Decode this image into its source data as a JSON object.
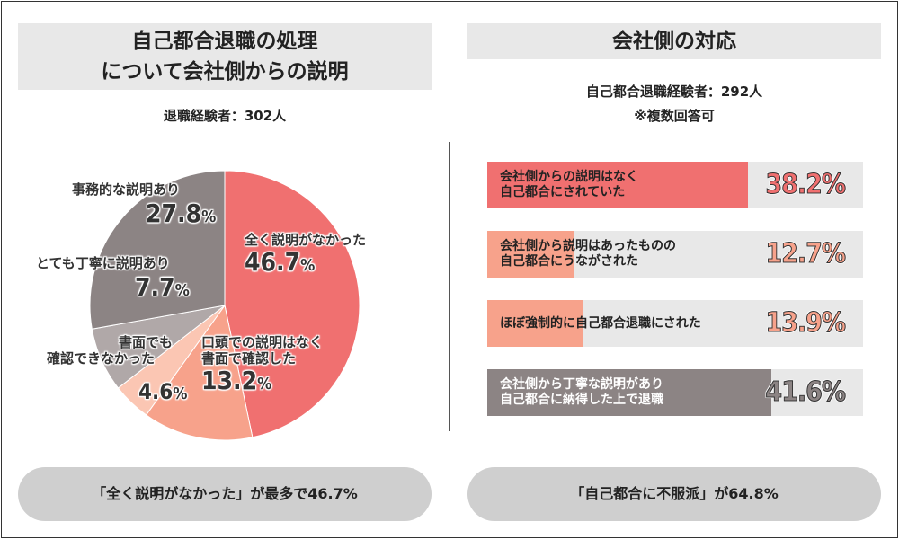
{
  "left": {
    "title_line1": "自己都合退職の処理",
    "title_line2": "について会社側からの説明",
    "subtitle": "退職経験者：302人",
    "summary": "「全く説明がなかった」が最多で46.7%"
  },
  "right": {
    "title": "会社側の対応",
    "subtitle1": "自己都合退職経験者：292人",
    "subtitle2": "※複数回答可",
    "summary": "「自己都合に不服派」が64.8%"
  },
  "chart_data": [
    {
      "type": "pie",
      "slices": [
        {
          "label": "全く説明がなかった",
          "value": 46.7,
          "display": "46.7",
          "color": "#f07070"
        },
        {
          "label": "口頭での説明はなく書面で確認した",
          "value": 13.2,
          "display": "13.2",
          "color": "#f7a28b"
        },
        {
          "label": "書面でも確認できなかった",
          "value": 4.6,
          "display": "4.6",
          "color": "#fbc6b3"
        },
        {
          "label": "とても丁寧に説明あり",
          "value": 7.7,
          "display": "7.7",
          "color": "#b0a8a8"
        },
        {
          "label": "事務的な説明あり",
          "value": 27.8,
          "display": "27.8",
          "color": "#8c8484"
        }
      ],
      "unit": "%"
    },
    {
      "type": "bar",
      "orientation": "horizontal",
      "categories": [
        "会社側からの説明はなく自己都合にされていた",
        "会社側から説明はあったものの自己都合にうながされた",
        "ほぼ強制的に自己都合退職にされた",
        "会社側から丁寧な説明があり自己都合に納得した上で退職"
      ],
      "category_lines": [
        [
          "会社側からの説明はなく",
          "自己都合にされていた"
        ],
        [
          "会社側から説明はあったものの",
          "自己都合にうながされた"
        ],
        [
          "ほぼ強制的に自己都合退職にされた"
        ],
        [
          "会社側から丁寧な説明があり",
          "自己都合に納得した上で退職"
        ]
      ],
      "values": [
        38.2,
        12.7,
        13.9,
        41.6
      ],
      "colors": [
        "#f07070",
        "#f7a28b",
        "#f7a28b",
        "#8c8484"
      ],
      "value_colors": [
        "#f07070",
        "#f7a28b",
        "#f7a28b",
        "#8c8484"
      ],
      "unit": "%"
    }
  ]
}
